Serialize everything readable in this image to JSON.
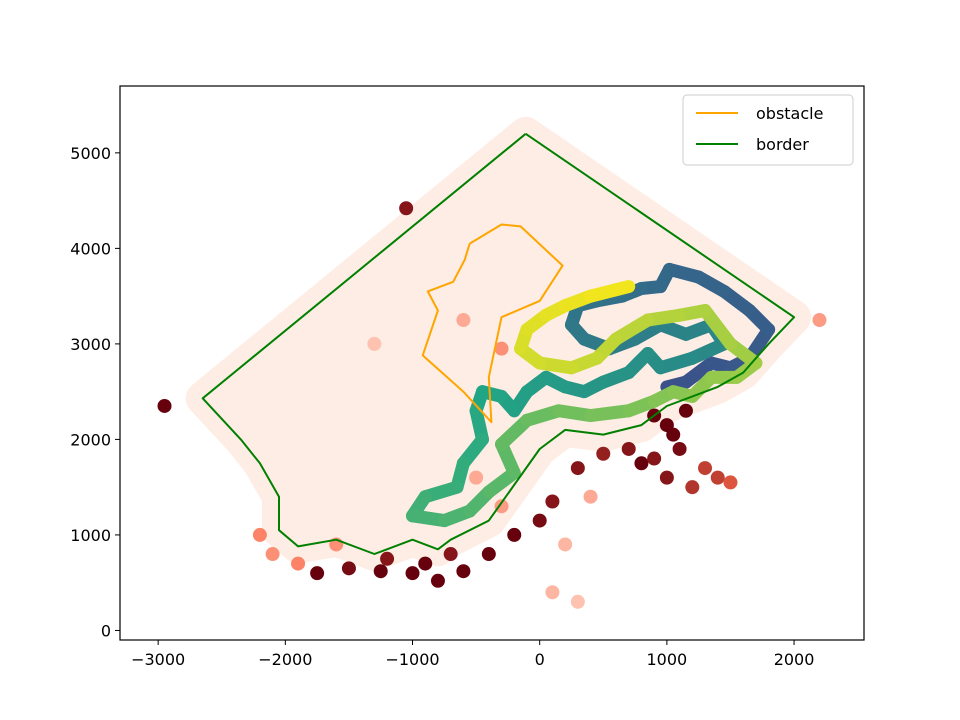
{
  "chart_data": {
    "type": "scatter",
    "title": "",
    "xlabel": "",
    "ylabel": "",
    "xlim": [
      -3300,
      2550
    ],
    "ylim": [
      -100,
      5700
    ],
    "x_ticks": [
      -3000,
      -2000,
      -1000,
      0,
      1000,
      2000
    ],
    "x_tick_labels": [
      "−3000",
      "−2000",
      "−1000",
      "0",
      "1000",
      "2000"
    ],
    "y_ticks": [
      0,
      1000,
      2000,
      3000,
      4000,
      5000
    ],
    "y_tick_labels": [
      "0",
      "1000",
      "2000",
      "3000",
      "4000",
      "5000"
    ],
    "grid": false,
    "legend_position": "top-right",
    "colors": {
      "obstacle": "#ffa500",
      "border": "#008000",
      "heat_low": "#fee8dc",
      "heat_mid": "#fb6a4a",
      "heat_high": "#67000d",
      "path_start": "#f1e51d",
      "path_mid": "#21a685",
      "path_end": "#3b518b"
    },
    "series": [
      {
        "name": "obstacle",
        "kind": "line",
        "points": [
          [
            -550,
            4050
          ],
          [
            -300,
            4250
          ],
          [
            -150,
            4230
          ],
          [
            180,
            3820
          ],
          [
            0,
            3450
          ],
          [
            -300,
            3280
          ],
          [
            -400,
            2650
          ],
          [
            -380,
            2180
          ],
          [
            -600,
            2500
          ],
          [
            -920,
            2880
          ],
          [
            -800,
            3350
          ],
          [
            -880,
            3550
          ],
          [
            -680,
            3650
          ],
          [
            -590,
            3880
          ],
          [
            -550,
            4050
          ]
        ]
      },
      {
        "name": "border",
        "kind": "line",
        "points": [
          [
            -110,
            5200
          ],
          [
            2000,
            3280
          ],
          [
            1800,
            3000
          ],
          [
            1700,
            2850
          ],
          [
            1600,
            2700
          ],
          [
            1400,
            2550
          ],
          [
            1000,
            2350
          ],
          [
            800,
            2150
          ],
          [
            500,
            2050
          ],
          [
            200,
            2100
          ],
          [
            0,
            1900
          ],
          [
            -400,
            1150
          ],
          [
            -700,
            950
          ],
          [
            -800,
            850
          ],
          [
            -1000,
            950
          ],
          [
            -1300,
            800
          ],
          [
            -1600,
            950
          ],
          [
            -1900,
            880
          ],
          [
            -2050,
            1050
          ],
          [
            -2050,
            1400
          ],
          [
            -2200,
            1750
          ],
          [
            -2350,
            2000
          ],
          [
            -2650,
            2430
          ],
          [
            -110,
            5200
          ]
        ]
      },
      {
        "name": "",
        "kind": "path",
        "points": [
          [
            1000,
            2550
          ],
          [
            1150,
            2600
          ],
          [
            1350,
            2800
          ],
          [
            1500,
            2750
          ],
          [
            1650,
            2850
          ],
          [
            1800,
            3150
          ],
          [
            1650,
            3350
          ],
          [
            1450,
            3550
          ],
          [
            1250,
            3700
          ],
          [
            1020,
            3780
          ],
          [
            950,
            3600
          ],
          [
            800,
            3580
          ],
          [
            650,
            3500
          ],
          [
            450,
            3450
          ],
          [
            300,
            3400
          ],
          [
            250,
            3200
          ],
          [
            350,
            3050
          ],
          [
            550,
            2950
          ],
          [
            750,
            3050
          ],
          [
            950,
            3200
          ],
          [
            1150,
            3100
          ],
          [
            1350,
            3200
          ],
          [
            1450,
            3000
          ],
          [
            1200,
            2850
          ],
          [
            950,
            2750
          ],
          [
            850,
            2900
          ],
          [
            700,
            2700
          ],
          [
            500,
            2600
          ],
          [
            350,
            2500
          ],
          [
            200,
            2550
          ],
          [
            50,
            2650
          ],
          [
            -100,
            2500
          ],
          [
            -200,
            2300
          ],
          [
            -300,
            2450
          ],
          [
            -450,
            2500
          ],
          [
            -500,
            2300
          ],
          [
            -450,
            2000
          ],
          [
            -600,
            1750
          ],
          [
            -650,
            1500
          ],
          [
            -900,
            1400
          ],
          [
            -1000,
            1200
          ],
          [
            -750,
            1150
          ],
          [
            -550,
            1250
          ],
          [
            -400,
            1450
          ],
          [
            -200,
            1650
          ],
          [
            -300,
            1950
          ],
          [
            -100,
            2200
          ],
          [
            150,
            2300
          ],
          [
            400,
            2250
          ],
          [
            700,
            2300
          ],
          [
            900,
            2400
          ],
          [
            1050,
            2500
          ],
          [
            1200,
            2450
          ],
          [
            1350,
            2650
          ],
          [
            1550,
            2650
          ],
          [
            1700,
            2800
          ],
          [
            1500,
            3000
          ],
          [
            1300,
            3350
          ],
          [
            1100,
            3300
          ],
          [
            850,
            3250
          ],
          [
            600,
            3050
          ],
          [
            450,
            2850
          ],
          [
            250,
            2750
          ],
          [
            0,
            2800
          ],
          [
            -150,
            2950
          ],
          [
            -100,
            3150
          ],
          [
            50,
            3300
          ],
          [
            200,
            3400
          ],
          [
            400,
            3500
          ],
          [
            700,
            3600
          ]
        ]
      },
      {
        "name": "",
        "kind": "heat",
        "points": [
          [
            -2950,
            2350,
            1
          ],
          [
            -1050,
            4420,
            0.9
          ],
          [
            -1750,
            600,
            1
          ],
          [
            -1500,
            650,
            0.95
          ],
          [
            -1250,
            620,
            1
          ],
          [
            -1000,
            600,
            1
          ],
          [
            -800,
            520,
            1
          ],
          [
            -600,
            620,
            1
          ],
          [
            -400,
            800,
            1
          ],
          [
            -200,
            1000,
            1
          ],
          [
            0,
            1150,
            0.95
          ],
          [
            100,
            1350,
            0.9
          ],
          [
            -1200,
            750,
            0.9
          ],
          [
            -900,
            700,
            1
          ],
          [
            -700,
            800,
            0.9
          ],
          [
            300,
            1700,
            0.9
          ],
          [
            500,
            1850,
            0.85
          ],
          [
            700,
            1900,
            0.9
          ],
          [
            800,
            1750,
            1
          ],
          [
            900,
            1800,
            0.9
          ],
          [
            1000,
            2150,
            1
          ],
          [
            1050,
            2050,
            1
          ],
          [
            1100,
            1900,
            0.95
          ],
          [
            1000,
            1600,
            0.9
          ],
          [
            1200,
            1500,
            0.75
          ],
          [
            1300,
            1700,
            0.7
          ],
          [
            1400,
            1600,
            0.7
          ],
          [
            1500,
            1550,
            0.6
          ],
          [
            900,
            2250,
            1
          ],
          [
            1150,
            2300,
            1
          ],
          [
            -2200,
            1000,
            0.4
          ],
          [
            -2100,
            800,
            0.35
          ],
          [
            -1900,
            700,
            0.4
          ],
          [
            -1600,
            900,
            0.35
          ],
          [
            -300,
            2950,
            0.35
          ],
          [
            -600,
            3250,
            0.25
          ],
          [
            -1300,
            3000,
            0.15
          ],
          [
            2200,
            3250,
            0.3
          ],
          [
            400,
            1400,
            0.25
          ],
          [
            200,
            900,
            0.2
          ],
          [
            100,
            400,
            0.2
          ],
          [
            300,
            300,
            0.15
          ],
          [
            -300,
            1300,
            0.3
          ],
          [
            -500,
            1600,
            0.25
          ]
        ]
      }
    ],
    "legend": [
      "obstacle",
      "border"
    ]
  }
}
